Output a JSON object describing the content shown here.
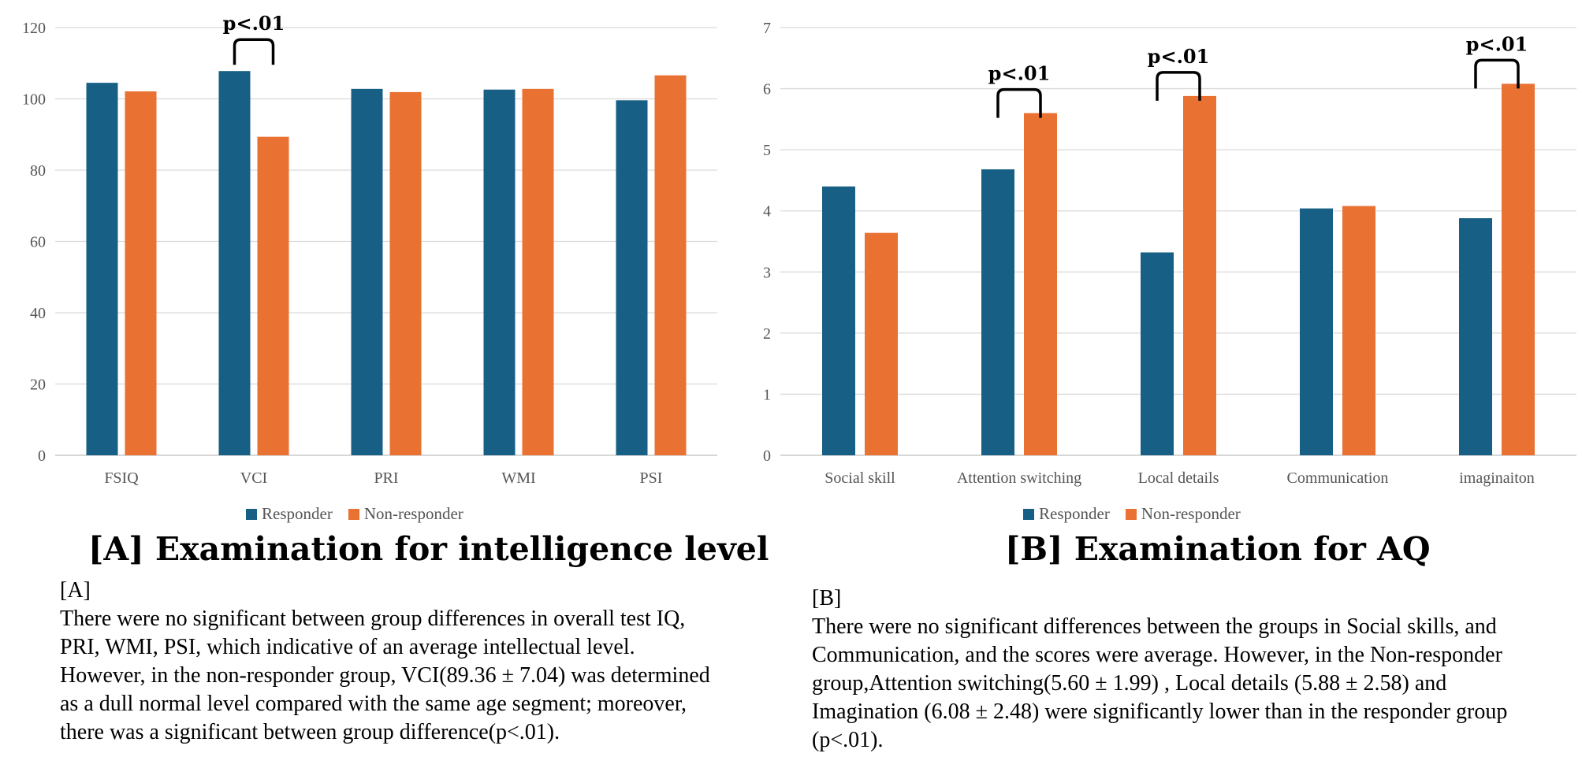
{
  "colors": {
    "responder": "#175f84",
    "non_responder": "#e97132",
    "grid": "#d9d9d9",
    "axis": "#bfbfbf"
  },
  "legend": {
    "responder": "Responder",
    "non_responder": "Non-responder"
  },
  "chart_data": [
    {
      "type": "bar",
      "title": "[A]  Examination for intelligence level",
      "categories": [
        "FSIQ",
        "VCI",
        "PRI",
        "WMI",
        "PSI"
      ],
      "series": [
        {
          "name": "Responder",
          "values": [
            104.5,
            107.8,
            102.8,
            102.6,
            99.6
          ]
        },
        {
          "name": "Non-responder",
          "values": [
            102.1,
            89.36,
            101.9,
            102.8,
            106.6
          ]
        }
      ],
      "ylim": [
        0,
        120
      ],
      "yticks": [
        0,
        20,
        40,
        60,
        80,
        100,
        120
      ],
      "significance": [
        {
          "category_index": 1,
          "label": "p<.01"
        }
      ],
      "legend_position": "bottom",
      "grid": true
    },
    {
      "type": "bar",
      "title": "[B]  Examination for AQ",
      "categories": [
        "Social skill",
        "Attention switching",
        "Local details",
        "Communication",
        "imaginaiton"
      ],
      "series": [
        {
          "name": "Responder",
          "values": [
            4.4,
            4.68,
            3.32,
            4.04,
            3.88
          ]
        },
        {
          "name": "Non-responder",
          "values": [
            3.64,
            5.6,
            5.88,
            4.08,
            6.08
          ]
        }
      ],
      "ylim": [
        0,
        7
      ],
      "yticks": [
        0,
        1,
        2,
        3,
        4,
        5,
        6,
        7
      ],
      "significance": [
        {
          "category_index": 1,
          "label": "p<.01"
        },
        {
          "category_index": 2,
          "label": "p<.01"
        },
        {
          "category_index": 4,
          "label": "p<.01"
        }
      ],
      "legend_position": "bottom",
      "grid": true
    }
  ],
  "descriptions": {
    "a": {
      "label": "[A]",
      "lines": [
        "There were no significant between group differences in overall test IQ,",
        "PRI, WMI, PSI, which indicative of an average intellectual level.",
        "However, in the non-responder group, VCI(89.36 ± 7.04) was determined",
        "as a dull normal level compared with the same age segment; moreover,",
        "there was a significant between group difference(p<.01)."
      ]
    },
    "b": {
      "label": "[B]",
      "lines": [
        "There were no significant differences between the groups in Social skills, and",
        "Communication, and the scores were average. However, in the Non-responder",
        "group,Attention switching(5.60 ± 1.99) , Local details (5.88 ± 2.58) and",
        "Imagination (6.08 ± 2.48) were significantly lower than in the responder group",
        "(p<.01)."
      ]
    }
  }
}
